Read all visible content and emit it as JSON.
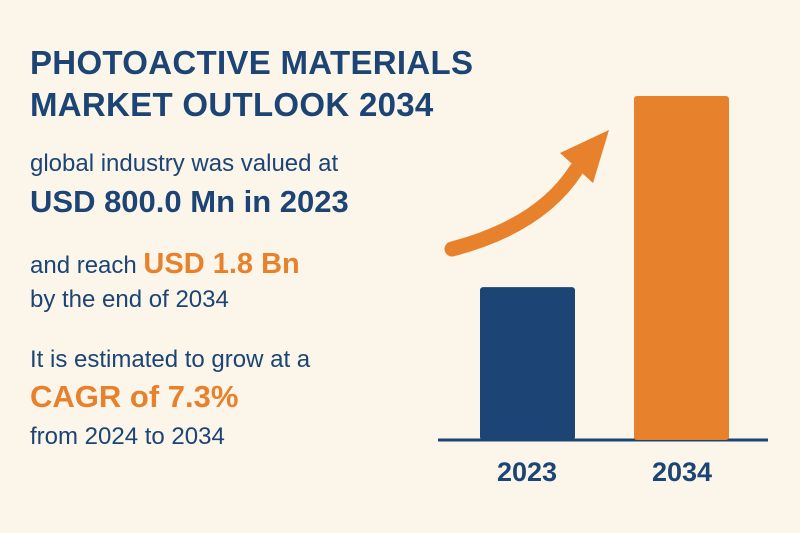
{
  "title_line1": "PHOTOACTIVE MATERIALS",
  "title_line2": "MARKET OUTLOOK 2034",
  "valued_intro": "global industry was valued at",
  "valued_amount": "USD 800.0 Mn in 2023",
  "reach_prefix": "and reach",
  "reach_amount": "USD 1.8 Bn",
  "reach_suffix": "by the end of 2034",
  "cagr_intro": "It is estimated to grow at a",
  "cagr_value": "CAGR of 7.3%",
  "cagr_period": "from 2024 to 2034",
  "colors": {
    "navy": "#1c4474",
    "orange": "#e8812c",
    "background": "#fbf5ea"
  },
  "chart_data": {
    "type": "bar",
    "categories": [
      "2023",
      "2034"
    ],
    "values": [
      800.0,
      1800.0
    ],
    "bar_colors": [
      "#1c4474",
      "#e8812c"
    ],
    "growth_arrow": true
  }
}
